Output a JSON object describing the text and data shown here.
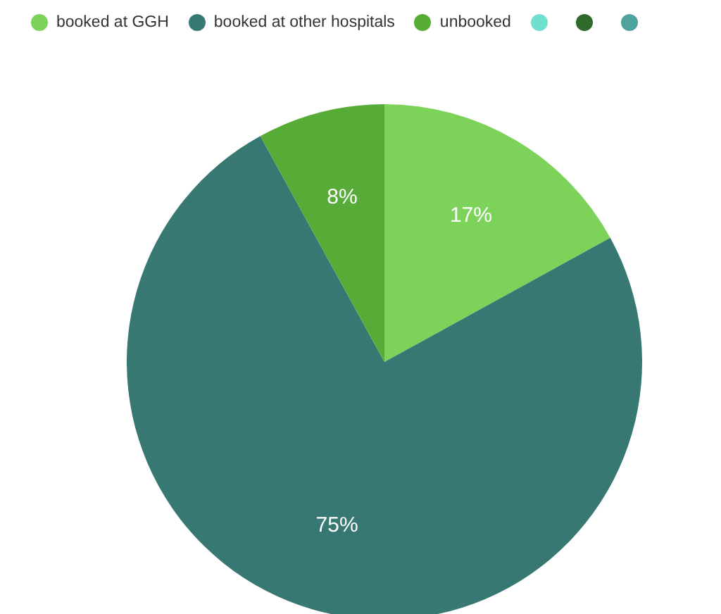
{
  "chart_data": {
    "type": "pie",
    "categories": [
      "booked at GGH",
      "booked at other hospitals",
      "unbooked",
      null,
      null,
      null
    ],
    "values": [
      17,
      75,
      8,
      0,
      0,
      0
    ],
    "colors": [
      "#7dd35a",
      "#377873",
      "#56ac37",
      "#6fe0cd",
      "#2f6a2a",
      "#4fa39c"
    ],
    "value_labels": [
      "17%",
      "75%",
      "8%",
      null,
      null,
      null
    ],
    "legend": "top"
  }
}
